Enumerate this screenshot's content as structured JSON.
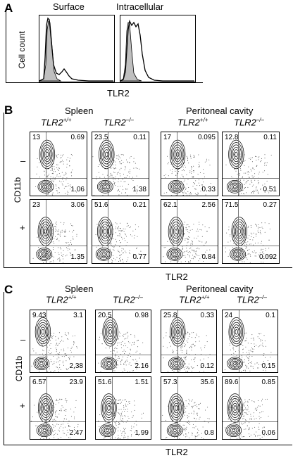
{
  "panel_a": {
    "letter": "A",
    "titles": [
      "Surface",
      "Intracellular"
    ],
    "ylabel": "Cell count",
    "xlabel": "TLR2"
  },
  "panel_b": {
    "letter": "B",
    "group_left": "Spleen",
    "group_right": "Peritoneal cavity",
    "columns": [
      {
        "gene": "TLR2",
        "sup": "+/+"
      },
      {
        "gene": "TLR2",
        "sup": "–/–"
      },
      {
        "gene": "TLR2",
        "sup": "+/+"
      },
      {
        "gene": "TLR2",
        "sup": "–/–"
      }
    ],
    "ylabel": "CD11b",
    "xlabel": "TLR2",
    "row_signs": [
      "–",
      "+"
    ],
    "quadrants": [
      [
        {
          "tl": "13",
          "tr": "0.69",
          "br": "1.06"
        },
        {
          "tl": "23.5",
          "tr": "0.11",
          "br": "1.38"
        },
        {
          "tl": "17",
          "tr": "0.095",
          "br": "0.33"
        },
        {
          "tl": "12.8",
          "tr": "0.11",
          "br": "0.51"
        }
      ],
      [
        {
          "tl": "23",
          "tr": "3.06",
          "br": "1.35"
        },
        {
          "tl": "51.6",
          "tr": "0.21",
          "br": "0.77"
        },
        {
          "tl": "62.1",
          "tr": "2.56",
          "br": "0.84"
        },
        {
          "tl": "71.5",
          "tr": "0.27",
          "br": "0.092"
        }
      ]
    ]
  },
  "panel_c": {
    "letter": "C",
    "group_left": "Spleen",
    "group_right": "Peritoneal cavity",
    "columns": [
      {
        "gene": "TLR2",
        "sup": "+/+"
      },
      {
        "gene": "TLR2",
        "sup": "–/–"
      },
      {
        "gene": "TLR2",
        "sup": "+/+"
      },
      {
        "gene": "TLR2",
        "sup": "–/–"
      }
    ],
    "ylabel": "CD11b",
    "xlabel": "TLR2",
    "row_signs": [
      "–",
      "+"
    ],
    "quadrants": [
      [
        {
          "tl": "9.43",
          "tr": "3.1",
          "br": "2.38"
        },
        {
          "tl": "20.5",
          "tr": "0.98",
          "br": "2.16"
        },
        {
          "tl": "25.8",
          "tr": "0.33",
          "br": "0.12"
        },
        {
          "tl": "24",
          "tr": "0.1",
          "br": "0.15"
        }
      ],
      [
        {
          "tl": "6.57",
          "tr": "23.9",
          "br": "2.47"
        },
        {
          "tl": "51.6",
          "tr": "1.51",
          "br": "1.99"
        },
        {
          "tl": "57.3",
          "tr": "35.6",
          "br": "0.8"
        },
        {
          "tl": "89.6",
          "tr": "0.85",
          "br": "0.06"
        }
      ]
    ]
  }
}
